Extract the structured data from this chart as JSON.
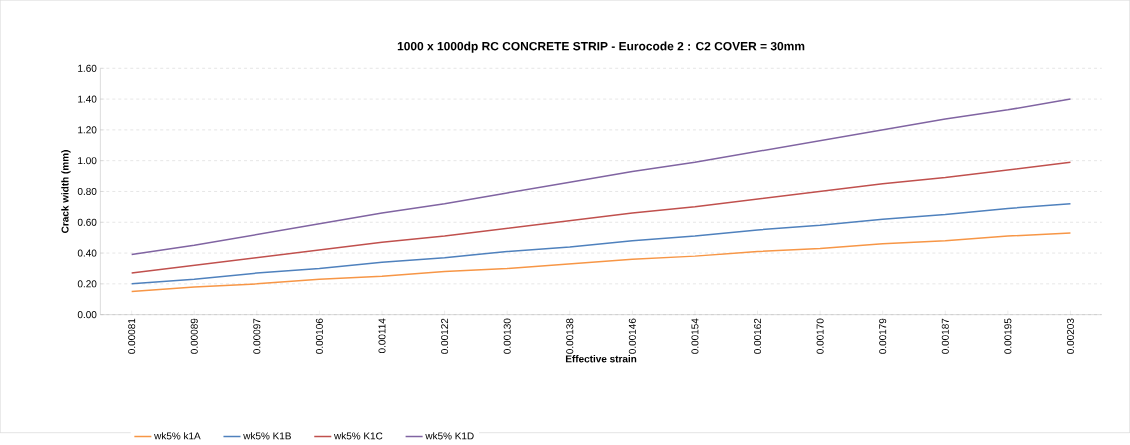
{
  "chart_data": {
    "type": "line",
    "title": "1000 x 1000dp RC CONCRETE STRIP - Eurocode 2 : C2 COVER = 30mm",
    "xlabel": "Effective strain",
    "ylabel": "Crack width (mm)",
    "categories": [
      "0.00081",
      "0.00089",
      "0.00097",
      "0.00106",
      "0.00114",
      "0.00122",
      "0.00130",
      "0.00138",
      "0.00146",
      "0.00154",
      "0.00162",
      "0.00170",
      "0.00179",
      "0.00187",
      "0.00195",
      "0.00203"
    ],
    "series": [
      {
        "name": "wk5% k1A",
        "color": "#f79646",
        "values": [
          0.15,
          0.18,
          0.2,
          0.23,
          0.25,
          0.28,
          0.3,
          0.33,
          0.36,
          0.38,
          0.41,
          0.43,
          0.46,
          0.48,
          0.51,
          0.53
        ]
      },
      {
        "name": "wk5% K1B",
        "color": "#4f81bd",
        "values": [
          0.2,
          0.23,
          0.27,
          0.3,
          0.34,
          0.37,
          0.41,
          0.44,
          0.48,
          0.51,
          0.55,
          0.58,
          0.62,
          0.65,
          0.69,
          0.72
        ]
      },
      {
        "name": "wk5% K1C",
        "color": "#c0504d",
        "values": [
          0.27,
          0.32,
          0.37,
          0.42,
          0.47,
          0.51,
          0.56,
          0.61,
          0.66,
          0.7,
          0.75,
          0.8,
          0.85,
          0.89,
          0.94,
          0.99
        ]
      },
      {
        "name": "wk5% K1D",
        "color": "#8064a2",
        "values": [
          0.39,
          0.45,
          0.52,
          0.59,
          0.66,
          0.72,
          0.79,
          0.86,
          0.93,
          0.99,
          1.06,
          1.13,
          1.2,
          1.27,
          1.33,
          1.4
        ]
      }
    ],
    "ylim": [
      0,
      1.6
    ],
    "yticks": [
      {
        "value": 0,
        "label": "0.00"
      },
      {
        "value": 0.2,
        "label": "0.20"
      },
      {
        "value": 0.4,
        "label": "0.40"
      },
      {
        "value": 0.6,
        "label": "0.60"
      },
      {
        "value": 0.8,
        "label": "0.80"
      },
      {
        "value": 1.0,
        "label": "1.00"
      },
      {
        "value": 1.2,
        "label": "1.20"
      },
      {
        "value": 1.4,
        "label": "1.40"
      },
      {
        "value": 1.6,
        "label": "1.60"
      }
    ],
    "grid": "y",
    "legend": "bottom",
    "marker": "none",
    "line_style": "solid"
  }
}
